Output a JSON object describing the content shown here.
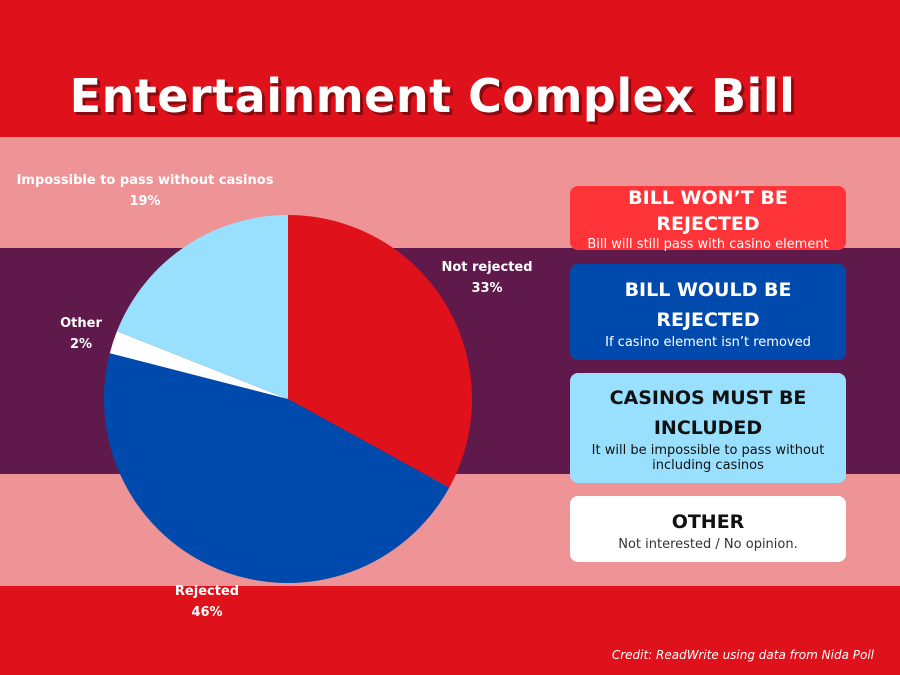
{
  "title": "Entertainment Complex Bill",
  "credit": "Credit: ReadWrite using data from Nida Poll",
  "colors": {
    "background_red": "#df111b",
    "band_pink": "#ee9396",
    "band_purple": "#5f1a4b"
  },
  "chart_data": {
    "type": "pie",
    "title": "Entertainment Complex Bill",
    "start_angle_deg": 0,
    "direction": "clockwise",
    "slices": [
      {
        "label": "Not rejected",
        "value": 33,
        "display": "33%",
        "color": "#df111b"
      },
      {
        "label": "Rejected",
        "value": 46,
        "display": "46%",
        "color": "#004aad"
      },
      {
        "label": "Other",
        "value": 2,
        "display": "2%",
        "color": "#ffffff"
      },
      {
        "label": "Impossible to pass without casinos",
        "value": 19,
        "display": "19%",
        "color": "#99e0ff"
      }
    ],
    "legend": [
      {
        "heading": "BILL WON’T BE REJECTED",
        "text": "Bill will still pass with casino element",
        "color": "#ff3438"
      },
      {
        "heading": "BILL WOULD BE REJECTED",
        "text": "If casino element isn’t removed",
        "color": "#004aad"
      },
      {
        "heading": "CASINOS MUST BE INCLUDED",
        "text": "It will be impossible to pass without including casinos",
        "color": "#99e0ff"
      },
      {
        "heading": "OTHER",
        "text": "Not interested / No opinion.",
        "color": "#ffffff"
      }
    ]
  }
}
